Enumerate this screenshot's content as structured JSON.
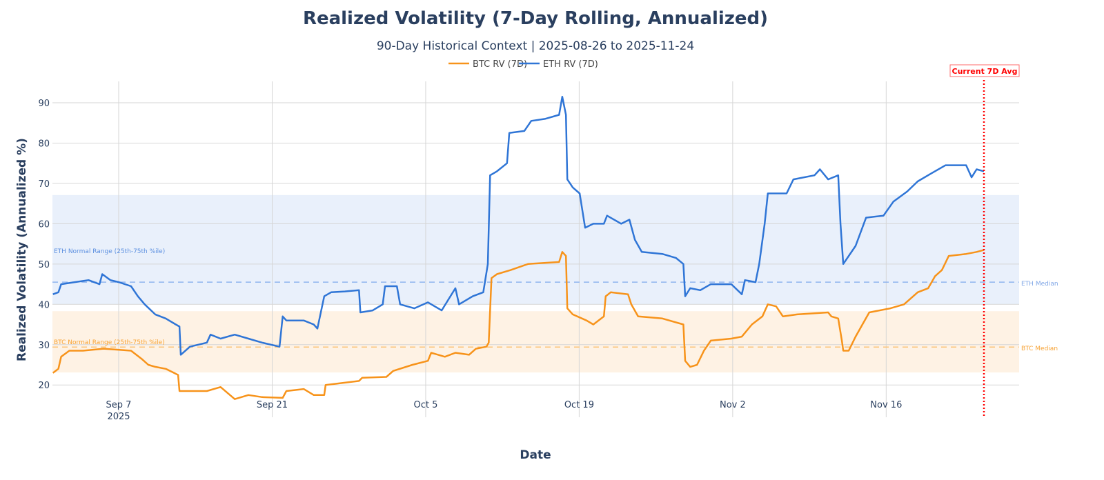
{
  "chart_data": {
    "type": "line",
    "title": "Realized Volatility (7-Day Rolling, Annualized)",
    "subtitle": "90-Day Historical Context | 2025-08-26 to 2025-11-24",
    "xlabel": "Date",
    "ylabel": "Realized Volatility (Annualized %)",
    "xlim": [
      "2025-08-31 23:00",
      "2025-11-28 03:00"
    ],
    "ylim": [
      12,
      95.3
    ],
    "grid": true,
    "legend_position": "top-center",
    "x_ticks": [
      {
        "date": "2025-09-07 00:00",
        "label": "Sep 7",
        "sublabel": "2025"
      },
      {
        "date": "2025-09-21 00:00",
        "label": "Sep 21"
      },
      {
        "date": "2025-10-05 00:00",
        "label": "Oct 5"
      },
      {
        "date": "2025-10-19 00:00",
        "label": "Oct 19"
      },
      {
        "date": "2025-11-02 00:00",
        "label": "Nov 2"
      },
      {
        "date": "2025-11-16 00:00",
        "label": "Nov 16"
      }
    ],
    "y_ticks": [
      20,
      30,
      40,
      50,
      60,
      70,
      80,
      90
    ],
    "bands": [
      {
        "name": "ETH Normal Range (25th-75th %ile)",
        "range": [
          40.0,
          67.1
        ],
        "color": "#e9f0fb",
        "label_color": "#5b8fe0"
      },
      {
        "name": "BTC Normal Range (25th-75th %ile)",
        "range": [
          23.1,
          38.3
        ],
        "color": "#fef2e4",
        "label_color": "#f7a233"
      }
    ],
    "medians": [
      {
        "name": "ETH Median",
        "value": 45.5,
        "color": "#8fb4ee"
      },
      {
        "name": "BTC Median",
        "value": 29.4,
        "color": "#fbc379"
      }
    ],
    "vline": {
      "label": "Current 7D Avg",
      "date": "2025-11-24 22:00",
      "color": "#ff0000"
    },
    "series": [
      {
        "name": "BTC RV (7D)",
        "color": "#f7931a",
        "points": [
          [
            "2025-09-01 00:00",
            23
          ],
          [
            "2025-09-01 12:00",
            24
          ],
          [
            "2025-09-01 18:00",
            27
          ],
          [
            "2025-09-02 12:00",
            28.5
          ],
          [
            "2025-09-03 18:00",
            28.5
          ],
          [
            "2025-09-05 15:00",
            29
          ],
          [
            "2025-09-08 03:00",
            28.5
          ],
          [
            "2025-09-09 02:00",
            26.5
          ],
          [
            "2025-09-09 17:00",
            25
          ],
          [
            "2025-09-10 08:00",
            24.5
          ],
          [
            "2025-09-11 07:00",
            24
          ],
          [
            "2025-09-12 10:00",
            22.5
          ],
          [
            "2025-09-12 13:00",
            18.5
          ],
          [
            "2025-09-15 01:00",
            18.5
          ],
          [
            "2025-09-16 07:00",
            19.5
          ],
          [
            "2025-09-17 14:00",
            16.5
          ],
          [
            "2025-09-18 20:00",
            17.5
          ],
          [
            "2025-09-20 02:00",
            17
          ],
          [
            "2025-09-21 23:00",
            16.8
          ],
          [
            "2025-09-22 07:00",
            18.5
          ],
          [
            "2025-09-23 21:00",
            19
          ],
          [
            "2025-09-24 19:00",
            17.5
          ],
          [
            "2025-09-25 18:00",
            17.5
          ],
          [
            "2025-09-25 21:00",
            20
          ],
          [
            "2025-09-28 22:00",
            21
          ],
          [
            "2025-09-29 05:00",
            21.8
          ],
          [
            "2025-10-01 10:00",
            22
          ],
          [
            "2025-10-02 01:00",
            23.5
          ],
          [
            "2025-10-03 19:00",
            25
          ],
          [
            "2025-10-05 05:00",
            26
          ],
          [
            "2025-10-05 12:00",
            28
          ],
          [
            "2025-10-06 18:00",
            27
          ],
          [
            "2025-10-07 17:00",
            28
          ],
          [
            "2025-10-08 23:00",
            27.5
          ],
          [
            "2025-10-09 14:00",
            29
          ],
          [
            "2025-10-10 13:00",
            29.5
          ],
          [
            "2025-10-10 18:00",
            30.5
          ],
          [
            "2025-10-11 00:00",
            46.5
          ],
          [
            "2025-10-11 12:00",
            47.5
          ],
          [
            "2025-10-12 18:00",
            48.5
          ],
          [
            "2025-10-14 08:00",
            50
          ],
          [
            "2025-10-17 04:00",
            50.5
          ],
          [
            "2025-10-17 11:00",
            53
          ],
          [
            "2025-10-17 19:00",
            52
          ],
          [
            "2025-10-17 22:00",
            39
          ],
          [
            "2025-10-18 10:00",
            37.5
          ],
          [
            "2025-10-19 16:00",
            36
          ],
          [
            "2025-10-20 07:00",
            35
          ],
          [
            "2025-10-21 06:00",
            37
          ],
          [
            "2025-10-21 10:00",
            42
          ],
          [
            "2025-10-21 21:00",
            43
          ],
          [
            "2025-10-23 11:00",
            42.5
          ],
          [
            "2025-10-23 18:00",
            40
          ],
          [
            "2025-10-24 09:00",
            37
          ],
          [
            "2025-10-26 14:00",
            36.5
          ],
          [
            "2025-10-28 12:00",
            35
          ],
          [
            "2025-10-28 16:00",
            26
          ],
          [
            "2025-10-29 03:00",
            24.5
          ],
          [
            "2025-10-29 18:00",
            25
          ],
          [
            "2025-10-30 09:00",
            28.5
          ],
          [
            "2025-10-31 00:00",
            31
          ],
          [
            "2025-11-01 21:00",
            31.5
          ],
          [
            "2025-11-02 20:00",
            32
          ],
          [
            "2025-11-03 18:00",
            35
          ],
          [
            "2025-11-04 17:00",
            37
          ],
          [
            "2025-11-05 05:00",
            40
          ],
          [
            "2025-11-05 23:00",
            39.5
          ],
          [
            "2025-11-06 14:00",
            37
          ],
          [
            "2025-11-07 21:00",
            37.5
          ],
          [
            "2025-11-10 17:00",
            38
          ],
          [
            "2025-11-11 00:00",
            37
          ],
          [
            "2025-11-11 15:00",
            36.5
          ],
          [
            "2025-11-11 23:00",
            31
          ],
          [
            "2025-11-12 02:00",
            28.5
          ],
          [
            "2025-11-12 14:00",
            28.5
          ],
          [
            "2025-11-13 05:00",
            32
          ],
          [
            "2025-11-13 20:00",
            35
          ],
          [
            "2025-11-14 11:00",
            38
          ],
          [
            "2025-11-16 09:00",
            39
          ],
          [
            "2025-11-17 15:00",
            40
          ],
          [
            "2025-11-18 21:00",
            43
          ],
          [
            "2025-11-19 20:00",
            44
          ],
          [
            "2025-11-20 11:00",
            47
          ],
          [
            "2025-11-21 02:00",
            48.5
          ],
          [
            "2025-11-21 17:00",
            52
          ],
          [
            "2025-11-23 07:00",
            52.5
          ],
          [
            "2025-11-24 06:00",
            53
          ],
          [
            "2025-11-24 22:00",
            53.5
          ]
        ]
      },
      {
        "name": "ETH RV (7D)",
        "color": "#2f75d6",
        "points": [
          [
            "2025-09-01 00:00",
            42.5
          ],
          [
            "2025-09-01 12:00",
            43
          ],
          [
            "2025-09-01 18:00",
            45
          ],
          [
            "2025-09-03 00:00",
            45.5
          ],
          [
            "2025-09-04 06:00",
            46
          ],
          [
            "2025-09-05 06:00",
            45
          ],
          [
            "2025-09-05 12:00",
            47.5
          ],
          [
            "2025-09-06 06:00",
            46
          ],
          [
            "2025-09-07 00:00",
            45.5
          ],
          [
            "2025-09-08 03:00",
            44.5
          ],
          [
            "2025-09-08 18:00",
            42
          ],
          [
            "2025-09-09 09:00",
            40
          ],
          [
            "2025-09-10 08:00",
            37.5
          ],
          [
            "2025-09-11 07:00",
            36.5
          ],
          [
            "2025-09-12 05:00",
            35
          ],
          [
            "2025-09-12 13:00",
            34.5
          ],
          [
            "2025-09-12 16:00",
            27.5
          ],
          [
            "2025-09-13 12:00",
            29.5
          ],
          [
            "2025-09-15 01:00",
            30.5
          ],
          [
            "2025-09-15 09:00",
            32.5
          ],
          [
            "2025-09-16 07:00",
            31.5
          ],
          [
            "2025-09-17 14:00",
            32.5
          ],
          [
            "2025-09-18 20:00",
            31.5
          ],
          [
            "2025-09-20 02:00",
            30.5
          ],
          [
            "2025-09-21 16:00",
            29.5
          ],
          [
            "2025-09-21 23:00",
            37
          ],
          [
            "2025-09-22 07:00",
            36
          ],
          [
            "2025-09-23 21:00",
            36
          ],
          [
            "2025-09-24 19:00",
            35
          ],
          [
            "2025-09-25 03:00",
            34
          ],
          [
            "2025-09-25 18:00",
            42
          ],
          [
            "2025-09-26 09:00",
            43
          ],
          [
            "2025-09-27 15:00",
            43.2
          ],
          [
            "2025-09-28 22:00",
            43.5
          ],
          [
            "2025-09-29 01:00",
            38
          ],
          [
            "2025-09-30 04:00",
            38.5
          ],
          [
            "2025-10-01 02:00",
            40
          ],
          [
            "2025-10-01 07:00",
            44.5
          ],
          [
            "2025-10-02 09:00",
            44.5
          ],
          [
            "2025-10-02 16:00",
            40
          ],
          [
            "2025-10-03 23:00",
            39
          ],
          [
            "2025-10-05 05:00",
            40.5
          ],
          [
            "2025-10-06 11:00",
            38.5
          ],
          [
            "2025-10-07 17:00",
            44
          ],
          [
            "2025-10-08 01:00",
            40
          ],
          [
            "2025-10-09 07:00",
            42
          ],
          [
            "2025-10-10 06:00",
            43
          ],
          [
            "2025-10-10 16:00",
            50
          ],
          [
            "2025-10-10 21:00",
            72
          ],
          [
            "2025-10-11 12:00",
            73
          ],
          [
            "2025-10-12 10:00",
            75
          ],
          [
            "2025-10-12 15:00",
            82.5
          ],
          [
            "2025-10-14 00:00",
            83
          ],
          [
            "2025-10-14 15:00",
            85.5
          ],
          [
            "2025-10-15 21:00",
            86
          ],
          [
            "2025-10-17 04:00",
            87
          ],
          [
            "2025-10-17 11:00",
            91.5
          ],
          [
            "2025-10-17 19:00",
            87
          ],
          [
            "2025-10-17 22:00",
            71
          ],
          [
            "2025-10-18 10:00",
            69
          ],
          [
            "2025-10-19 01:00",
            67.5
          ],
          [
            "2025-10-19 13:00",
            59
          ],
          [
            "2025-10-20 07:00",
            60
          ],
          [
            "2025-10-21 06:00",
            60
          ],
          [
            "2025-10-21 13:00",
            62
          ],
          [
            "2025-10-22 20:00",
            60
          ],
          [
            "2025-10-23 14:00",
            61
          ],
          [
            "2025-10-24 02:00",
            56
          ],
          [
            "2025-10-24 17:00",
            53
          ],
          [
            "2025-10-26 14:00",
            52.5
          ],
          [
            "2025-10-27 20:00",
            51.5
          ],
          [
            "2025-10-28 12:00",
            50
          ],
          [
            "2025-10-28 16:00",
            42
          ],
          [
            "2025-10-29 03:00",
            44
          ],
          [
            "2025-10-30 01:00",
            43.5
          ],
          [
            "2025-10-31 00:00",
            45
          ],
          [
            "2025-11-01 21:00",
            45
          ],
          [
            "2025-11-02 20:00",
            42.5
          ],
          [
            "2025-11-03 03:00",
            46
          ],
          [
            "2025-11-04 02:00",
            45.5
          ],
          [
            "2025-11-04 10:00",
            50
          ],
          [
            "2025-11-04 22:00",
            60
          ],
          [
            "2025-11-05 05:00",
            67.5
          ],
          [
            "2025-11-06 22:00",
            67.5
          ],
          [
            "2025-11-07 13:00",
            71
          ],
          [
            "2025-11-09 11:00",
            72
          ],
          [
            "2025-11-09 23:00",
            73.5
          ],
          [
            "2025-11-10 17:00",
            71
          ],
          [
            "2025-11-11 15:00",
            72
          ],
          [
            "2025-11-11 20:00",
            60
          ],
          [
            "2025-11-12 02:00",
            50
          ],
          [
            "2025-11-13 05:00",
            54.5
          ],
          [
            "2025-11-14 04:00",
            61.5
          ],
          [
            "2025-11-15 18:00",
            62
          ],
          [
            "2025-11-16 16:00",
            65.5
          ],
          [
            "2025-11-17 22:00",
            68
          ],
          [
            "2025-11-18 21:00",
            70.5
          ],
          [
            "2025-11-20 03:00",
            72.5
          ],
          [
            "2025-11-21 10:00",
            74.5
          ],
          [
            "2025-11-23 07:00",
            74.5
          ],
          [
            "2025-11-23 19:00",
            71.5
          ],
          [
            "2025-11-24 06:00",
            73.5
          ],
          [
            "2025-11-24 22:00",
            73
          ]
        ]
      }
    ]
  }
}
